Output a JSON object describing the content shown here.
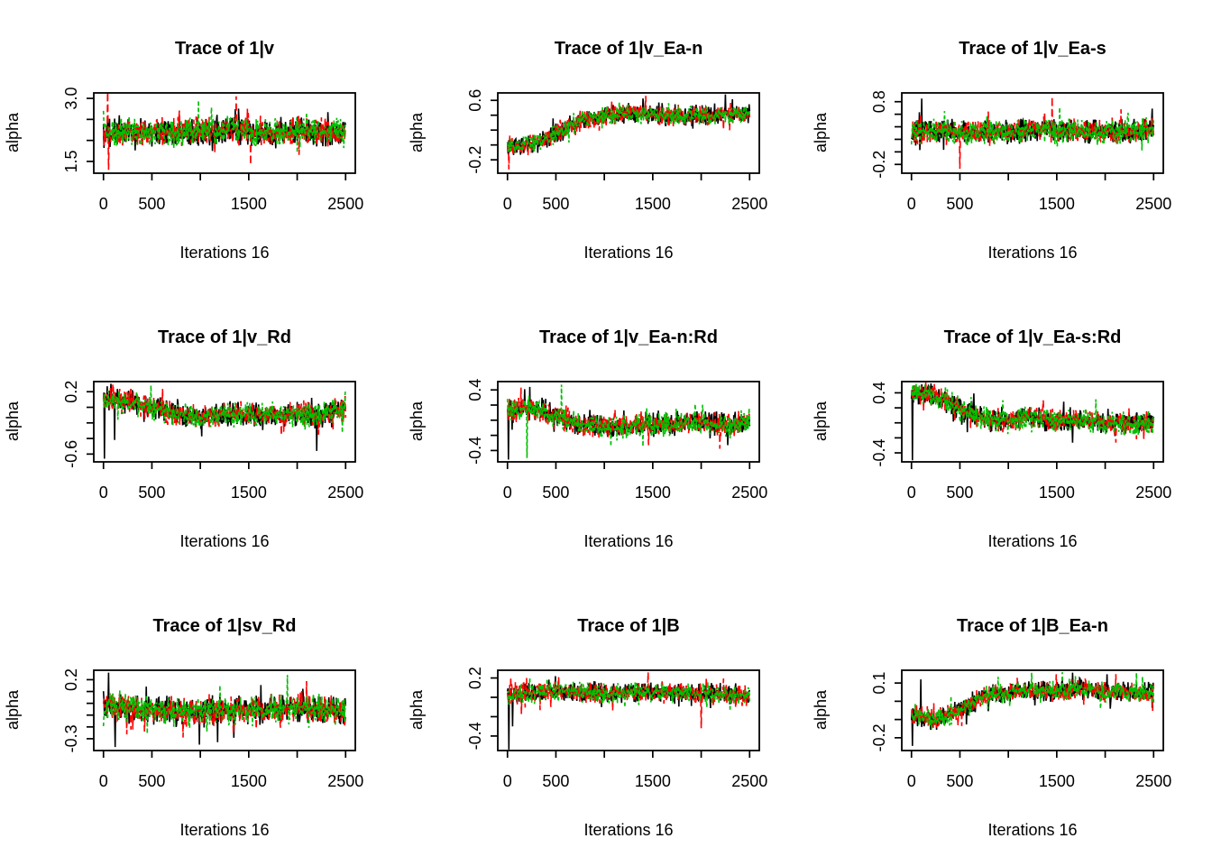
{
  "chart_data": {
    "type": "line",
    "subtype": "mcmc-trace-grid",
    "grid": {
      "rows": 3,
      "cols": 3
    },
    "background": "#ffffff",
    "xlabel": "Iterations 16",
    "ylabel": "alpha",
    "x_range": [
      0,
      2500
    ],
    "x_ticks": [
      {
        "v": 0,
        "label": "0"
      },
      {
        "v": 500,
        "label": "500"
      },
      {
        "v": 1000,
        "label": ""
      },
      {
        "v": 1500,
        "label": "1500"
      },
      {
        "v": 2000,
        "label": ""
      },
      {
        "v": 2500,
        "label": "2500"
      }
    ],
    "legend": false,
    "series": [
      {
        "name": "chain-1",
        "color": "#000000",
        "dash": "solid"
      },
      {
        "name": "chain-2",
        "color": "#FF0000",
        "dash": "dashed"
      },
      {
        "name": "chain-3",
        "color": "#00C000",
        "dash": "dotted"
      }
    ],
    "panels": [
      {
        "title": "Trace of 1|v",
        "y_ticks": [
          1.5,
          2.0,
          2.5,
          3.0
        ],
        "y_tick_labels": [
          {
            "v": 3.0,
            "label": "3.0"
          },
          {
            "v": 1.5,
            "label": "1.5"
          }
        ],
        "ylim": [
          1.22,
          3.13
        ],
        "profile_x": [
          0,
          250,
          500,
          750,
          1000,
          1250,
          1500,
          1750,
          2000,
          2250,
          2500
        ],
        "profile_mean": [
          2.15,
          2.2,
          2.2,
          2.22,
          2.2,
          2.25,
          2.2,
          2.18,
          2.22,
          2.2,
          2.2
        ],
        "noise": 0.28,
        "spikes": [
          {
            "chain": 1,
            "x": 45,
            "v": 3.28
          },
          {
            "chain": 1,
            "x": 55,
            "v": 1.3
          },
          {
            "chain": 1,
            "x": 1370,
            "v": 3.05
          },
          {
            "chain": 1,
            "x": 1520,
            "v": 1.42
          },
          {
            "chain": 2,
            "x": 980,
            "v": 2.95
          }
        ]
      },
      {
        "title": "Trace of 1|v_Ea-n",
        "y_ticks": [
          -0.2,
          0.0,
          0.2,
          0.4,
          0.6
        ],
        "y_tick_labels": [
          {
            "v": 0.6,
            "label": "0.6"
          },
          {
            "v": -0.2,
            "label": "-0.2"
          }
        ],
        "ylim": [
          -0.38,
          0.7
        ],
        "profile_x": [
          0,
          250,
          500,
          750,
          1000,
          1250,
          1500,
          1750,
          2000,
          2250,
          2500
        ],
        "profile_mean": [
          -0.02,
          0.0,
          0.15,
          0.33,
          0.4,
          0.43,
          0.4,
          0.38,
          0.4,
          0.42,
          0.4
        ],
        "noise": 0.11,
        "spikes": [
          {
            "chain": 1,
            "x": 15,
            "v": -0.33
          },
          {
            "chain": 1,
            "x": 1430,
            "v": 0.66
          },
          {
            "chain": 0,
            "x": 2250,
            "v": 0.68
          }
        ]
      },
      {
        "title": "Trace of 1|v_Ea-s",
        "y_ticks": [
          -0.2,
          0.0,
          0.2,
          0.4,
          0.6,
          0.8
        ],
        "y_tick_labels": [
          {
            "v": 0.8,
            "label": "0.8"
          },
          {
            "v": -0.2,
            "label": "-0.2"
          }
        ],
        "ylim": [
          -0.34,
          0.94
        ],
        "profile_x": [
          0,
          250,
          500,
          750,
          1000,
          1250,
          1500,
          1750,
          2000,
          2250,
          2500
        ],
        "profile_mean": [
          0.3,
          0.32,
          0.3,
          0.33,
          0.32,
          0.35,
          0.33,
          0.34,
          0.32,
          0.33,
          0.36
        ],
        "noise": 0.16,
        "spikes": [
          {
            "chain": 1,
            "x": 500,
            "v": -0.27
          },
          {
            "chain": 1,
            "x": 1450,
            "v": 0.88
          },
          {
            "chain": 0,
            "x": 105,
            "v": 0.85
          }
        ]
      },
      {
        "title": "Trace of 1|v_Rd",
        "y_ticks": [
          -0.6,
          -0.4,
          -0.2,
          0.0,
          0.2
        ],
        "y_tick_labels": [
          {
            "v": 0.2,
            "label": "0.2"
          },
          {
            "v": -0.6,
            "label": "-0.6"
          }
        ],
        "ylim": [
          -0.7,
          0.33
        ],
        "profile_x": [
          0,
          250,
          500,
          750,
          1000,
          1250,
          1500,
          1750,
          2000,
          2250,
          2500
        ],
        "profile_mean": [
          0.1,
          0.08,
          0.0,
          -0.08,
          -0.12,
          -0.1,
          -0.08,
          -0.1,
          -0.08,
          -0.1,
          -0.02
        ],
        "noise": 0.13,
        "spikes": [
          {
            "chain": 0,
            "x": 12,
            "v": -0.66
          },
          {
            "chain": 0,
            "x": 2200,
            "v": -0.56
          },
          {
            "chain": 1,
            "x": 95,
            "v": 0.3
          },
          {
            "chain": 0,
            "x": 115,
            "v": -0.42
          }
        ]
      },
      {
        "title": "Trace of 1|v_Ea-n:Rd",
        "y_ticks": [
          -0.4,
          -0.2,
          0.0,
          0.2,
          0.4
        ],
        "y_tick_labels": [
          {
            "v": 0.4,
            "label": "0.4"
          },
          {
            "v": -0.4,
            "label": "-0.4"
          }
        ],
        "ylim": [
          -0.55,
          0.51
        ],
        "profile_x": [
          0,
          250,
          500,
          750,
          1000,
          1250,
          1500,
          1750,
          2000,
          2250,
          2500
        ],
        "profile_mean": [
          0.12,
          0.16,
          0.05,
          -0.06,
          -0.1,
          -0.08,
          -0.06,
          -0.04,
          -0.03,
          -0.08,
          -0.01
        ],
        "noise": 0.13,
        "spikes": [
          {
            "chain": 0,
            "x": 12,
            "v": -0.52
          },
          {
            "chain": 2,
            "x": 560,
            "v": 0.47
          },
          {
            "chain": 2,
            "x": 200,
            "v": -0.5
          },
          {
            "chain": 1,
            "x": 140,
            "v": 0.43
          },
          {
            "chain": 0,
            "x": 230,
            "v": 0.44
          }
        ]
      },
      {
        "title": "Trace of 1|v_Ea-s:Rd",
        "y_ticks": [
          -0.4,
          -0.2,
          0.0,
          0.2,
          0.4
        ],
        "y_tick_labels": [
          {
            "v": 0.4,
            "label": "0.4"
          },
          {
            "v": -0.4,
            "label": "-0.4"
          }
        ],
        "ylim": [
          -0.52,
          0.55
        ],
        "profile_x": [
          0,
          250,
          500,
          750,
          1000,
          1250,
          1500,
          1750,
          2000,
          2250,
          2500
        ],
        "profile_mean": [
          0.4,
          0.36,
          0.18,
          0.06,
          0.02,
          0.08,
          0.02,
          0.06,
          0.0,
          -0.02,
          0.03
        ],
        "noise": 0.13,
        "spikes": [
          {
            "chain": 0,
            "x": 12,
            "v": -0.5
          },
          {
            "chain": 2,
            "x": 50,
            "v": 0.52
          },
          {
            "chain": 1,
            "x": 30,
            "v": 0.5
          }
        ]
      },
      {
        "title": "Trace of 1|sv_Rd",
        "y_ticks": [
          -0.3,
          -0.2,
          -0.1,
          0.0,
          0.1,
          0.2
        ],
        "y_tick_labels": [
          {
            "v": 0.2,
            "label": "0.2"
          },
          {
            "v": -0.3,
            "label": "-0.3"
          }
        ],
        "ylim": [
          -0.4,
          0.28
        ],
        "profile_x": [
          0,
          250,
          500,
          750,
          1000,
          1250,
          1500,
          1750,
          2000,
          2250,
          2500
        ],
        "profile_mean": [
          -0.02,
          -0.04,
          -0.05,
          -0.07,
          -0.08,
          -0.06,
          -0.06,
          -0.04,
          -0.03,
          -0.05,
          -0.07
        ],
        "noise": 0.1,
        "spikes": [
          {
            "chain": 0,
            "x": 55,
            "v": 0.26
          },
          {
            "chain": 0,
            "x": 120,
            "v": -0.37
          },
          {
            "chain": 2,
            "x": 1900,
            "v": 0.24
          },
          {
            "chain": 0,
            "x": 990,
            "v": -0.35
          },
          {
            "chain": 0,
            "x": 1180,
            "v": -0.33
          }
        ]
      },
      {
        "title": "Trace of 1|B",
        "y_ticks": [
          -0.4,
          -0.2,
          0.0,
          0.2
        ],
        "y_tick_labels": [
          {
            "v": 0.2,
            "label": "0.2"
          },
          {
            "v": -0.4,
            "label": "-0.4"
          }
        ],
        "ylim": [
          -0.55,
          0.28
        ],
        "profile_x": [
          0,
          250,
          500,
          750,
          1000,
          1250,
          1500,
          1750,
          2000,
          2250,
          2500
        ],
        "profile_mean": [
          0.02,
          0.05,
          0.06,
          0.05,
          0.04,
          0.05,
          0.05,
          0.04,
          0.05,
          0.03,
          0.02
        ],
        "noise": 0.085,
        "spikes": [
          {
            "chain": 0,
            "x": 15,
            "v": -0.54
          },
          {
            "chain": 1,
            "x": 1450,
            "v": 0.26
          },
          {
            "chain": 1,
            "x": 2000,
            "v": -0.32
          },
          {
            "chain": 0,
            "x": 55,
            "v": -0.3
          }
        ]
      },
      {
        "title": "Trace of 1|B_Ea-n",
        "y_ticks": [
          -0.2,
          -0.1,
          0.0,
          0.1
        ],
        "y_tick_labels": [
          {
            "v": 0.1,
            "label": "0.1"
          },
          {
            "v": -0.2,
            "label": "-0.2"
          }
        ],
        "ylim": [
          -0.27,
          0.17
        ],
        "profile_x": [
          0,
          250,
          500,
          750,
          1000,
          1250,
          1500,
          1750,
          2000,
          2250,
          2500
        ],
        "profile_mean": [
          -0.08,
          -0.1,
          -0.05,
          0.03,
          0.05,
          0.06,
          0.05,
          0.07,
          0.05,
          0.05,
          0.05
        ],
        "noise": 0.045,
        "spikes": [
          {
            "chain": 0,
            "x": 12,
            "v": -0.245
          },
          {
            "chain": 2,
            "x": 2320,
            "v": 0.155
          },
          {
            "chain": 0,
            "x": 95,
            "v": 0.12
          }
        ]
      }
    ]
  }
}
